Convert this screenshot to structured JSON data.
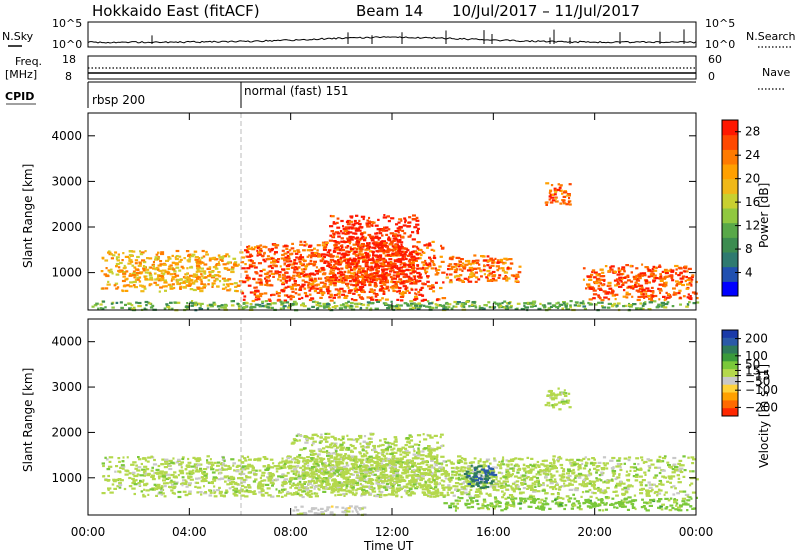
{
  "header": {
    "station": "Hokkaido East (fitACF)",
    "beam": "Beam 14",
    "date_range": "10/Jul/2017 – 11/Jul/2017"
  },
  "status_panels": {
    "nsky_label": "N.Sky",
    "nsky_ticks": [
      "10^5",
      "10^0"
    ],
    "nsky_right_ticks": [
      "10^5",
      "10^0"
    ],
    "nsearch_label": "N.Search",
    "freq_label_line1": "Freq.",
    "freq_label_line2": "[MHz]",
    "freq_ticks": [
      "18",
      "8"
    ],
    "nave_ticks": [
      "60",
      "0"
    ],
    "nave_label": "Nave",
    "cpid_label": "CPID",
    "cpid_segments": [
      {
        "name": "rbsp 200",
        "start_hour": 0
      },
      {
        "name": "normal (fast) 151",
        "start_hour": 6
      }
    ]
  },
  "colors": {
    "power_scale": [
      "#0000ff",
      "#2050b0",
      "#2e7a70",
      "#3c8c50",
      "#58a848",
      "#90c840",
      "#c8d030",
      "#f0b818",
      "#ffa000",
      "#ff7a00",
      "#ff4800",
      "#ff1800"
    ],
    "velocity_scale": [
      "#1a3aa8",
      "#2a5aa8",
      "#2e7a5a",
      "#3a9a3a",
      "#7ac83a",
      "#b4d84c",
      "#c8c8c8",
      "#ffd23a",
      "#ffa000",
      "#ff6a00",
      "#ff2800"
    ]
  },
  "chart_data": [
    {
      "type": "heatmap",
      "title": "",
      "ylabel": "Slant Range [km]",
      "xlabel": "",
      "x_ticks": [
        "00:00",
        "04:00",
        "08:00",
        "12:00",
        "16:00",
        "20:00",
        "00:00"
      ],
      "x_range_hours": [
        0,
        24
      ],
      "y_ticks": [
        1000,
        2000,
        3000,
        4000
      ],
      "ylim": [
        180,
        4500
      ],
      "colorbar": {
        "label": "Power [dB]",
        "ticks": [
          4,
          8,
          12,
          16,
          20,
          24,
          28
        ],
        "range": [
          0,
          30
        ]
      },
      "regions": [
        {
          "x": [
            0.5,
            6.0
          ],
          "y": [
            600,
            1500
          ],
          "value": 20
        },
        {
          "x": [
            6.0,
            14.0
          ],
          "y": [
            400,
            1700
          ],
          "value": 26
        },
        {
          "x": [
            9.5,
            13.0
          ],
          "y": [
            700,
            2300
          ],
          "value": 29
        },
        {
          "x": [
            14.0,
            17.0
          ],
          "y": [
            800,
            1400
          ],
          "value": 24
        },
        {
          "x": [
            18.0,
            19.0
          ],
          "y": [
            2500,
            3000
          ],
          "value": 24
        },
        {
          "x": [
            19.5,
            24.0
          ],
          "y": [
            400,
            1200
          ],
          "value": 26
        },
        {
          "x": [
            0.0,
            24.0
          ],
          "y": [
            200,
            400
          ],
          "value": 12
        }
      ]
    },
    {
      "type": "heatmap",
      "title": "",
      "ylabel": "Slant Range [km]",
      "xlabel": "Time UT",
      "x_ticks": [
        "00:00",
        "04:00",
        "08:00",
        "12:00",
        "16:00",
        "20:00",
        "00:00"
      ],
      "x_range_hours": [
        0,
        24
      ],
      "y_ticks": [
        1000,
        2000,
        3000,
        4000
      ],
      "ylim": [
        180,
        4500
      ],
      "colorbar": {
        "label": "Velocity [m s^-1]",
        "ticks": [
          200,
          100,
          50,
          15,
          -15,
          -50,
          -100,
          -200
        ],
        "range": [
          -250,
          250
        ]
      },
      "regions": [
        {
          "x": [
            0.5,
            24.0
          ],
          "y": [
            600,
            1500
          ],
          "value": 0
        },
        {
          "x": [
            8.0,
            14.0
          ],
          "y": [
            600,
            2000
          ],
          "value": 0
        },
        {
          "x": [
            14.8,
            16.0
          ],
          "y": [
            800,
            1300
          ],
          "value": 150
        },
        {
          "x": [
            18.0,
            19.0
          ],
          "y": [
            2500,
            3000
          ],
          "value": 0
        },
        {
          "x": [
            14.0,
            24.0
          ],
          "y": [
            300,
            600
          ],
          "value": 40
        },
        {
          "x": [
            8.0,
            11.0
          ],
          "y": [
            200,
            400
          ],
          "value": -40
        }
      ]
    }
  ]
}
